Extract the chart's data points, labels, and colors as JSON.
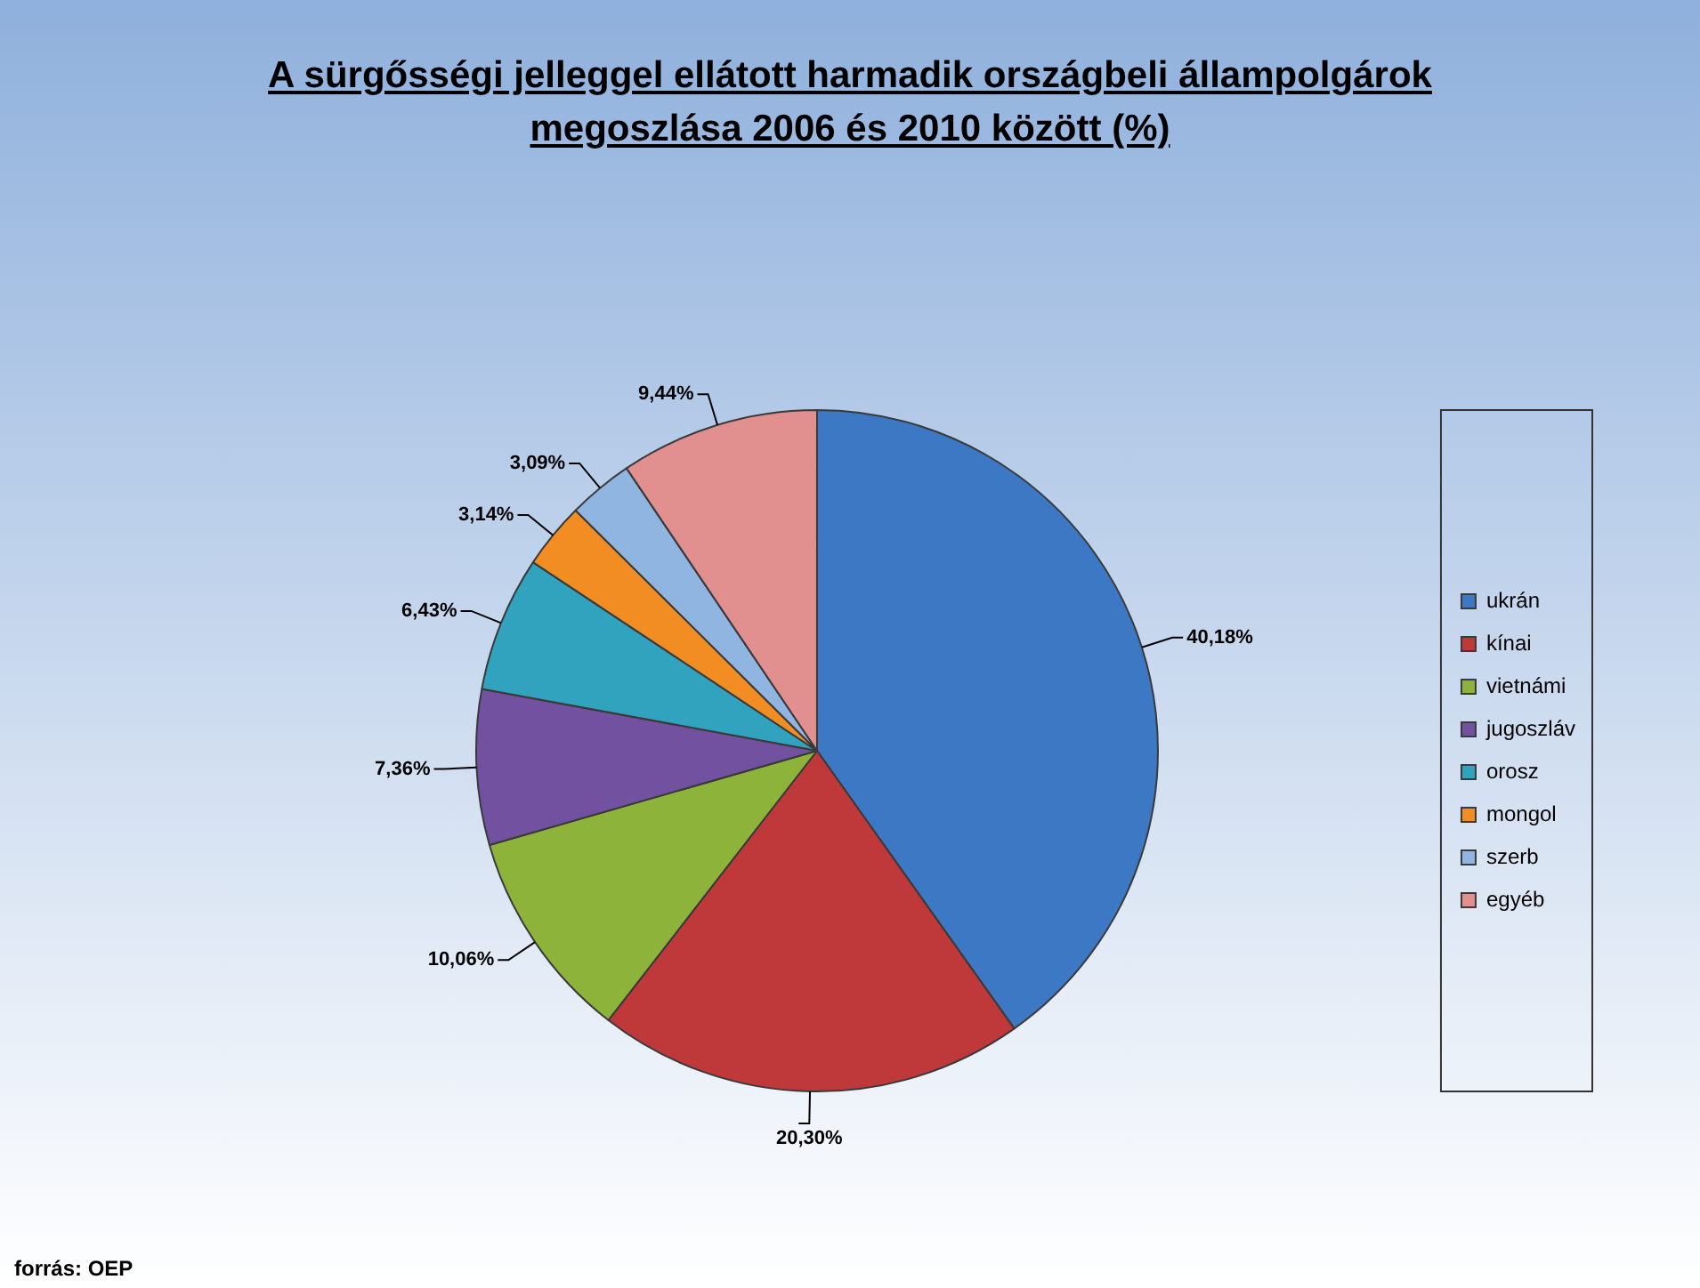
{
  "chart_data": {
    "type": "pie",
    "title": "A sürgősségi jelleggel ellátott harmadik országbeli állampolgárok megoszlása 2006 és 2010 között (%)",
    "categories": [
      "ukrán",
      "kínai",
      "vietnámi",
      "jugoszláv",
      "orosz",
      "mongol",
      "szerb",
      "egyéb"
    ],
    "values": [
      40.18,
      20.3,
      10.06,
      7.36,
      6.43,
      3.14,
      3.09,
      9.44
    ],
    "colors": [
      "#3d78c4",
      "#c0393a",
      "#8db33a",
      "#7151a0",
      "#31a3bf",
      "#f18d23",
      "#8fb5e0",
      "#e28f8f"
    ],
    "value_labels": [
      "40,18%",
      "20,30%",
      "10,06%",
      "7,36%",
      "6,43%",
      "3,14%",
      "3,09%",
      "9,44%"
    ],
    "legend": "right",
    "annotations": [
      "forrás: OEP"
    ]
  }
}
